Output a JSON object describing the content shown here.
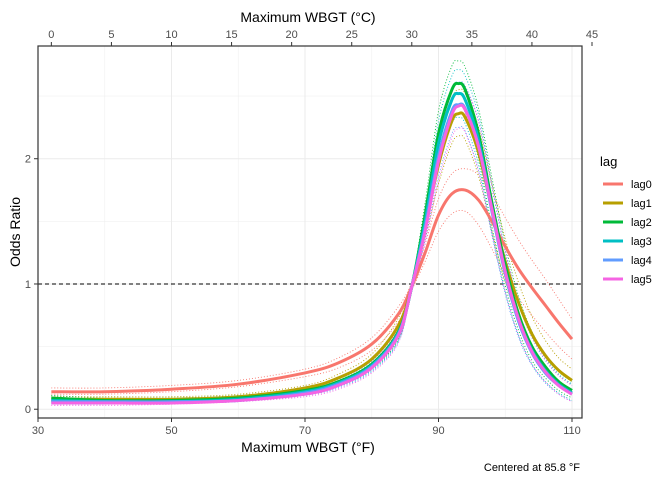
{
  "chart_data": {
    "type": "line",
    "xlabel_bottom": "Maximum WBGT (°F)",
    "xlabel_top": "Maximum WBGT (°C)",
    "ylabel": "Odds Ratio",
    "caption": "Centered at 85.8 °F",
    "xlim": [
      30,
      111.5
    ],
    "ylim": [
      -0.07,
      2.9
    ],
    "x_ticks_bottom": [
      30,
      50,
      70,
      90,
      110
    ],
    "x_ticks_top_c": [
      0,
      5,
      10,
      15,
      20,
      25,
      30,
      35,
      40,
      45
    ],
    "y_ticks": [
      0,
      1,
      2
    ],
    "reference_line_y": 1,
    "grid": true,
    "legend": {
      "title": "lag",
      "placement": "right"
    },
    "series": [
      {
        "name": "lag0",
        "color": "#F8766D",
        "x": [
          32,
          40,
          50,
          60,
          70,
          75,
          80,
          84,
          86,
          88,
          90,
          92,
          94,
          96,
          98,
          100,
          102,
          104,
          106,
          108,
          110
        ],
        "y": [
          0.14,
          0.14,
          0.16,
          0.2,
          0.29,
          0.37,
          0.52,
          0.76,
          0.98,
          1.25,
          1.55,
          1.72,
          1.75,
          1.67,
          1.5,
          1.3,
          1.12,
          0.97,
          0.83,
          0.69,
          0.56
        ],
        "lower": [
          0.12,
          0.12,
          0.14,
          0.18,
          0.26,
          0.33,
          0.47,
          0.7,
          0.95,
          1.18,
          1.42,
          1.56,
          1.58,
          1.47,
          1.28,
          1.07,
          0.89,
          0.75,
          0.62,
          0.5,
          0.4
        ],
        "upper": [
          0.17,
          0.17,
          0.19,
          0.23,
          0.32,
          0.41,
          0.57,
          0.82,
          1.01,
          1.32,
          1.68,
          1.88,
          1.92,
          1.87,
          1.72,
          1.53,
          1.35,
          1.19,
          1.04,
          0.88,
          0.72
        ]
      },
      {
        "name": "lag1",
        "color": "#B79F00",
        "x": [
          32,
          40,
          50,
          60,
          70,
          75,
          80,
          84,
          86,
          88,
          90,
          92,
          93,
          94,
          96,
          98,
          100,
          102,
          104,
          106,
          108,
          110
        ],
        "y": [
          0.08,
          0.08,
          0.08,
          0.1,
          0.17,
          0.25,
          0.4,
          0.67,
          0.98,
          1.45,
          1.95,
          2.3,
          2.36,
          2.33,
          2.05,
          1.6,
          1.18,
          0.85,
          0.6,
          0.43,
          0.31,
          0.23
        ],
        "lower": [
          0.06,
          0.06,
          0.07,
          0.09,
          0.15,
          0.22,
          0.36,
          0.61,
          0.95,
          1.36,
          1.8,
          2.12,
          2.18,
          2.15,
          1.86,
          1.42,
          1.02,
          0.71,
          0.48,
          0.33,
          0.23,
          0.15
        ],
        "upper": [
          0.1,
          0.1,
          0.1,
          0.12,
          0.19,
          0.28,
          0.44,
          0.73,
          1.01,
          1.54,
          2.1,
          2.48,
          2.55,
          2.52,
          2.25,
          1.8,
          1.36,
          1.01,
          0.74,
          0.55,
          0.41,
          0.32
        ]
      },
      {
        "name": "lag2",
        "color": "#00BA38",
        "x": [
          32,
          40,
          50,
          60,
          70,
          75,
          80,
          84,
          86,
          88,
          90,
          92,
          93,
          94,
          96,
          98,
          100,
          102,
          104,
          106,
          108,
          110
        ],
        "y": [
          0.09,
          0.07,
          0.07,
          0.09,
          0.15,
          0.22,
          0.36,
          0.62,
          0.98,
          1.55,
          2.2,
          2.55,
          2.6,
          2.55,
          2.2,
          1.65,
          1.15,
          0.76,
          0.5,
          0.34,
          0.22,
          0.15
        ],
        "lower": [
          0.07,
          0.06,
          0.06,
          0.08,
          0.13,
          0.19,
          0.32,
          0.56,
          0.95,
          1.45,
          2.02,
          2.36,
          2.42,
          2.37,
          2.0,
          1.46,
          0.99,
          0.63,
          0.39,
          0.25,
          0.15,
          0.09
        ],
        "upper": [
          0.11,
          0.09,
          0.09,
          0.11,
          0.17,
          0.25,
          0.4,
          0.68,
          1.01,
          1.65,
          2.38,
          2.74,
          2.78,
          2.73,
          2.4,
          1.85,
          1.32,
          0.9,
          0.62,
          0.44,
          0.3,
          0.22
        ]
      },
      {
        "name": "lag3",
        "color": "#00BFC4",
        "x": [
          32,
          40,
          50,
          60,
          70,
          75,
          80,
          84,
          86,
          88,
          90,
          92,
          93,
          94,
          96,
          98,
          100,
          102,
          104,
          106,
          108,
          110
        ],
        "y": [
          0.07,
          0.06,
          0.06,
          0.08,
          0.14,
          0.21,
          0.35,
          0.61,
          0.98,
          1.5,
          2.12,
          2.47,
          2.52,
          2.47,
          2.15,
          1.6,
          1.1,
          0.72,
          0.47,
          0.31,
          0.2,
          0.13
        ],
        "lower": [
          0.05,
          0.05,
          0.05,
          0.07,
          0.12,
          0.18,
          0.31,
          0.55,
          0.95,
          1.4,
          1.95,
          2.28,
          2.33,
          2.28,
          1.95,
          1.41,
          0.94,
          0.59,
          0.36,
          0.22,
          0.13,
          0.07
        ],
        "upper": [
          0.09,
          0.08,
          0.08,
          0.1,
          0.16,
          0.24,
          0.39,
          0.67,
          1.01,
          1.6,
          2.3,
          2.66,
          2.71,
          2.66,
          2.35,
          1.8,
          1.27,
          0.86,
          0.59,
          0.41,
          0.28,
          0.2
        ]
      },
      {
        "name": "lag4",
        "color": "#619CFF",
        "x": [
          32,
          40,
          50,
          60,
          70,
          75,
          80,
          84,
          86,
          88,
          90,
          92,
          93,
          94,
          96,
          98,
          100,
          102,
          104,
          106,
          108,
          110
        ],
        "y": [
          0.06,
          0.06,
          0.06,
          0.07,
          0.13,
          0.2,
          0.34,
          0.6,
          0.98,
          1.45,
          2.02,
          2.38,
          2.43,
          2.4,
          2.1,
          1.58,
          1.08,
          0.7,
          0.45,
          0.29,
          0.19,
          0.12
        ],
        "lower": [
          0.04,
          0.04,
          0.05,
          0.06,
          0.11,
          0.17,
          0.3,
          0.54,
          0.95,
          1.35,
          1.86,
          2.2,
          2.25,
          2.22,
          1.9,
          1.39,
          0.92,
          0.57,
          0.35,
          0.21,
          0.12,
          0.06
        ],
        "upper": [
          0.08,
          0.08,
          0.07,
          0.08,
          0.15,
          0.23,
          0.38,
          0.66,
          1.01,
          1.55,
          2.18,
          2.56,
          2.61,
          2.58,
          2.3,
          1.77,
          1.25,
          0.84,
          0.57,
          0.39,
          0.27,
          0.19
        ]
      },
      {
        "name": "lag5",
        "color": "#F564E3",
        "x": [
          32,
          40,
          50,
          60,
          70,
          75,
          80,
          84,
          86,
          88,
          90,
          92,
          93,
          94,
          96,
          98,
          100,
          102,
          104,
          106,
          108,
          110
        ],
        "y": [
          0.05,
          0.05,
          0.05,
          0.07,
          0.12,
          0.19,
          0.33,
          0.59,
          0.98,
          1.42,
          1.98,
          2.35,
          2.42,
          2.39,
          2.1,
          1.6,
          1.1,
          0.72,
          0.46,
          0.3,
          0.19,
          0.12
        ],
        "lower": [
          0.03,
          0.03,
          0.04,
          0.06,
          0.1,
          0.16,
          0.29,
          0.53,
          0.95,
          1.32,
          1.82,
          2.17,
          2.24,
          2.21,
          1.9,
          1.41,
          0.94,
          0.59,
          0.36,
          0.22,
          0.12,
          0.06
        ],
        "upper": [
          0.07,
          0.07,
          0.06,
          0.08,
          0.14,
          0.22,
          0.37,
          0.65,
          1.01,
          1.52,
          2.14,
          2.53,
          2.6,
          2.57,
          2.3,
          1.79,
          1.27,
          0.86,
          0.58,
          0.4,
          0.27,
          0.19
        ]
      }
    ]
  }
}
